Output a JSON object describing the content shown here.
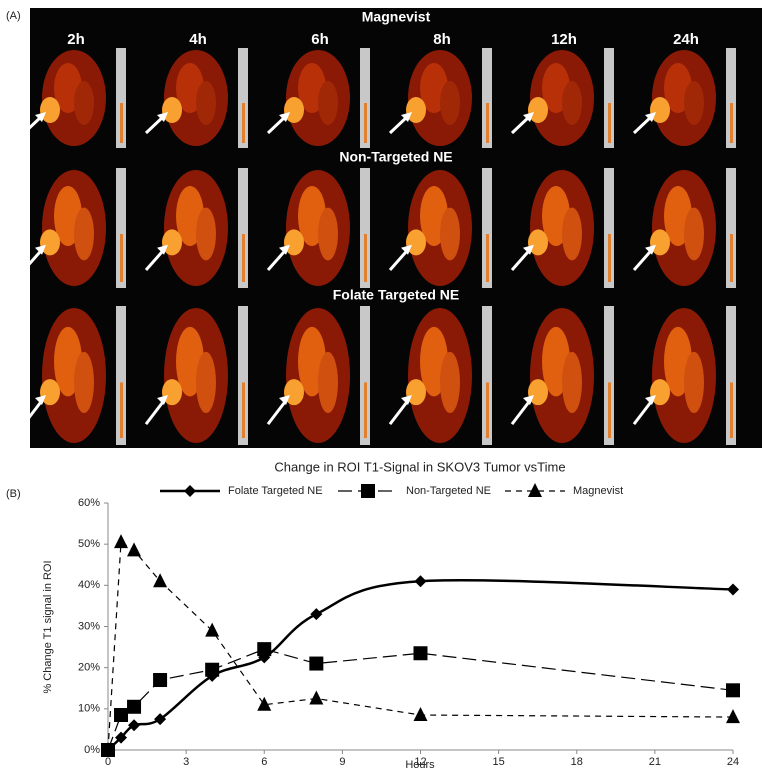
{
  "panel_a": {
    "label": "(A)",
    "rows": [
      "Magnevist",
      "Non-Targeted NE",
      "Folate Targeted NE"
    ],
    "times": [
      "2h",
      "4h",
      "6h",
      "8h",
      "12h",
      "24h"
    ]
  },
  "panel_b": {
    "label": "(B)"
  },
  "chart_data": {
    "type": "line",
    "title": "Change in ROI T1-Signal in SKOV3 Tumor vsTime",
    "x_label": "Hours",
    "y_label": "% Change T1 signal in ROI",
    "x": [
      0,
      0.5,
      1,
      2,
      4,
      6,
      8,
      12,
      24
    ],
    "series": [
      {
        "name": "Folate Targeted NE",
        "color": "#000000",
        "marker": "diamond",
        "line_style": "solid",
        "smooth": true,
        "values": [
          0,
          3,
          6,
          7.5,
          18,
          22.5,
          33,
          41,
          39
        ]
      },
      {
        "name": "Non-Targeted NE",
        "color": "#000000",
        "marker": "square",
        "line_style": "long-dash",
        "smooth": false,
        "values": [
          0,
          8.5,
          10.5,
          17,
          19.5,
          24.5,
          21,
          23.5,
          14.5
        ]
      },
      {
        "name": "Magnevist",
        "color": "#000000",
        "marker": "triangle",
        "line_style": "dash",
        "smooth": false,
        "values": [
          0,
          50.5,
          48.5,
          41,
          29,
          11,
          12.5,
          8.5,
          8
        ]
      }
    ],
    "xlim": [
      0,
      24
    ],
    "xticks": [
      0,
      3,
      6,
      9,
      12,
      15,
      18,
      21,
      24
    ],
    "ylim": [
      0,
      60
    ],
    "yticks": [
      {
        "value": 0,
        "label": "0%"
      },
      {
        "value": 10,
        "label": "10%"
      },
      {
        "value": 20,
        "label": "20%"
      },
      {
        "value": 30,
        "label": "30%"
      },
      {
        "value": 40,
        "label": "40%"
      },
      {
        "value": 50,
        "label": "50%"
      },
      {
        "value": 60,
        "label": "60%"
      }
    ],
    "grid": false,
    "legend": "top"
  }
}
